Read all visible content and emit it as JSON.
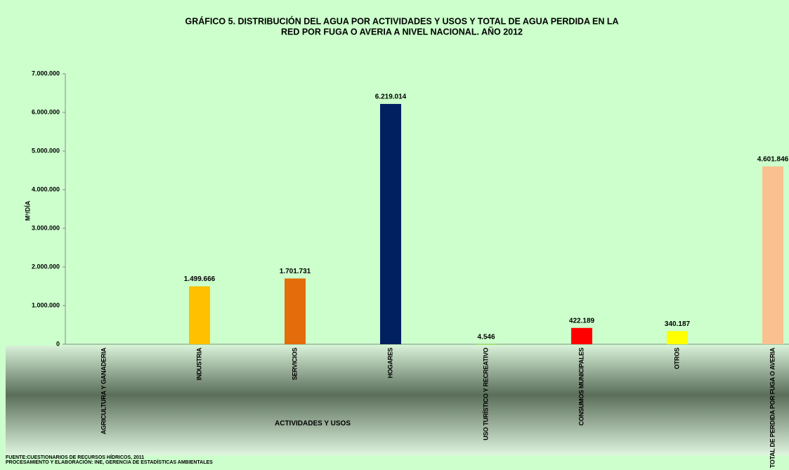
{
  "chart_data": {
    "type": "bar",
    "title": [
      "GRÁFICO 5.  DISTRIBUCIÓN DEL AGUA POR ACTIVIDADES Y USOS Y TOTAL DE AGUA PERDIDA EN LA",
      "RED POR FUGA O AVERIA A NIVEL NACIONAL. AÑO 2012"
    ],
    "x_label": "ACTIVIDADES Y USOS",
    "y_label": "M³/DÍA",
    "categories": [
      "AGRICULTURA Y GANADERIA",
      "INDUSTRIA",
      "SERVICIOS",
      "HOGARES",
      "USO TURÍSTICO Y RECREATIVO",
      "CONSUMOS MUNICIPALES",
      "OTROS",
      "TOTAL DE PERDIDA POR FUGA O AVERIA"
    ],
    "values": [
      null,
      1499666,
      1701731,
      6219014,
      4546,
      422189,
      340187,
      4601846
    ],
    "value_labels": [
      null,
      "1.499.666",
      "1.701.731",
      "6.219.014",
      "4.546",
      "422.189",
      "340.187",
      "4.601.846"
    ],
    "colors": [
      null,
      "#ffc000",
      "#e46c0a",
      "#002060",
      "#92d050",
      "#ff0000",
      "#ffff00",
      "#fac090"
    ],
    "ylim": [
      0,
      7000000
    ],
    "yticks": [
      0,
      {
        "value": 1000000,
        "label": "1.000.000"
      },
      {
        "value": 2000000,
        "label": "2.000.000"
      },
      {
        "value": 3000000,
        "label": "3.000.000"
      },
      {
        "value": 4000000,
        "label": "4.000.000"
      },
      {
        "value": 5000000,
        "label": "5.000.000"
      },
      {
        "value": 6000000,
        "label": "6.000.000"
      },
      {
        "value": 7000000,
        "label": "7.000.000"
      }
    ],
    "grid": false,
    "source": [
      "FUENTE:CUESTIONARIOS  DE  RECURSOS  HÍDRICOS,  2011",
      "PROCESAMIENTO  Y  ELABORACIÓN:  INE,  GERENCIA  DE  ESTADÍSTICAS  AMBIENTALES"
    ]
  }
}
